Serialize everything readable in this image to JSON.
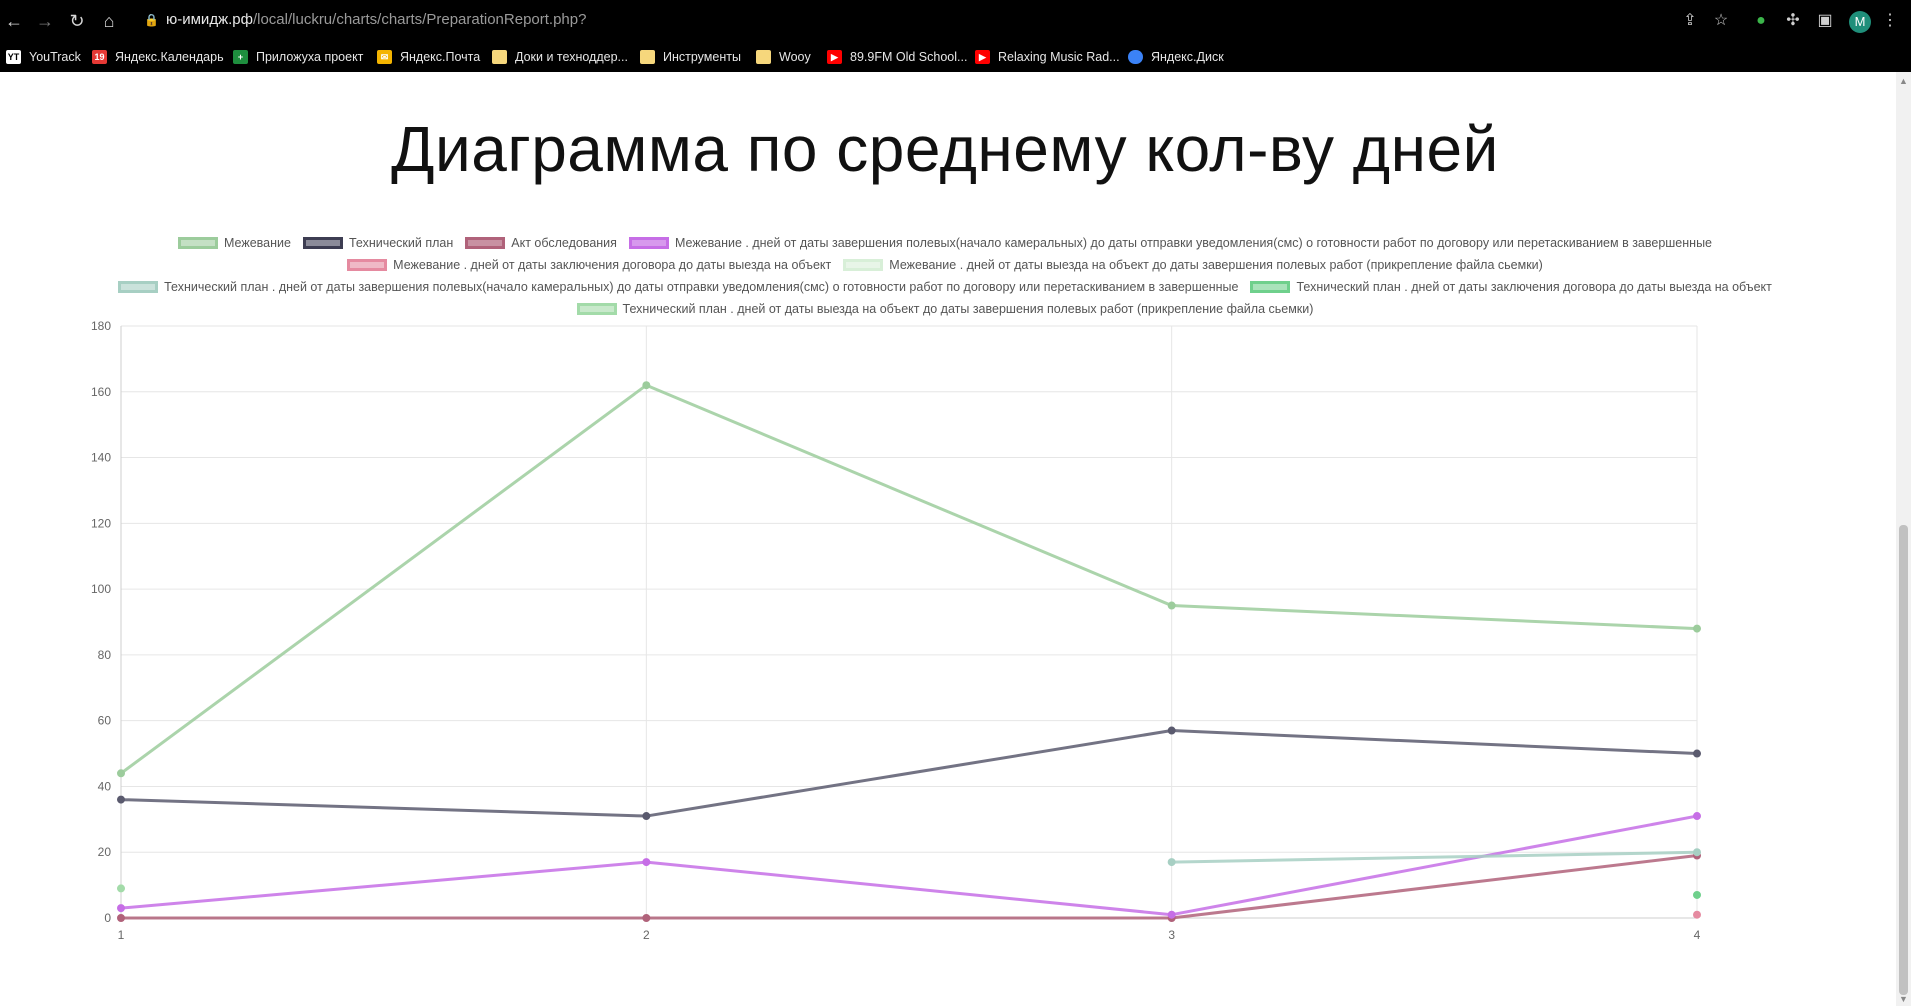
{
  "browser": {
    "url_domain": "ю-имидж.рф",
    "url_path": "/local/luckru/charts/charts/PreparationReport.php?",
    "profile_initial": "M"
  },
  "bookmarks": [
    {
      "label": "YouTrack",
      "icon": "youtrack-icon",
      "color": "#ffffff"
    },
    {
      "label": "Яндекс.Календарь",
      "icon": "calendar-icon",
      "color": "#e53935"
    },
    {
      "label": "Приложуха проект",
      "icon": "sheets-icon",
      "color": "#1e8e3e"
    },
    {
      "label": "Яндекс.Почта",
      "icon": "mail-icon",
      "color": "#f4b400"
    },
    {
      "label": "Доки и техноддер...",
      "icon": "folder-icon",
      "color": "#f6d77c"
    },
    {
      "label": "Инструменты",
      "icon": "folder-icon",
      "color": "#f6d77c"
    },
    {
      "label": "Wooy",
      "icon": "folder-icon",
      "color": "#f6d77c"
    },
    {
      "label": "89.9FM Old School...",
      "icon": "youtube-icon",
      "color": "#ff0000"
    },
    {
      "label": "Relaxing Music Rad...",
      "icon": "youtube-icon",
      "color": "#ff0000"
    },
    {
      "label": "Яндекс.Диск",
      "icon": "disk-icon",
      "color": "#3b82f6"
    }
  ],
  "page": {
    "title": "Диаграмма по среднему кол-ву дней"
  },
  "chart_data": {
    "type": "line",
    "x": [
      "1",
      "2",
      "3",
      "4"
    ],
    "yticks": [
      "0",
      "20",
      "40",
      "60",
      "80",
      "100",
      "120",
      "140",
      "160",
      "180"
    ],
    "ylim": [
      0,
      180
    ],
    "grid": true,
    "legend_position": "top",
    "series": [
      {
        "name": "Межевание",
        "color": "#9ccc9c",
        "values": [
          44,
          162,
          95,
          88
        ]
      },
      {
        "name": "Технический план",
        "color": "#5a5a6e",
        "values": [
          36,
          31,
          57,
          50
        ]
      },
      {
        "name": "Акт обследования",
        "color": "#b0627a",
        "values": [
          0,
          0,
          0,
          19
        ]
      },
      {
        "name": "Межевание . дней от даты завершения полевых(начало камеральных) до даты отправки уведомления(смс) о готовности работ по договору или перетаскиванием в завершенные",
        "color": "#c66ee6",
        "values": [
          3,
          17,
          1,
          31
        ]
      },
      {
        "name": "Межевание . дней от даты заключения договора до даты выезда на объект",
        "color": "#e58aa0",
        "values": [
          null,
          null,
          null,
          1
        ]
      },
      {
        "name": "Межевание . дней от даты выезда на объект до даты завершения полевых работ (прикрепление файла сьемки)",
        "color": "#d8efd8",
        "values": [
          null,
          null,
          null,
          null
        ]
      },
      {
        "name": "Технический план . дней от даты завершения полевых(начало камеральных) до даты отправки уведомления(смс) о готовности работ по договору или перетаскиванием в завершенные",
        "color": "#a7cfc3",
        "values": [
          null,
          null,
          17,
          20
        ]
      },
      {
        "name": "Технический план . дней от даты заключения договора до даты выезда на объект",
        "color": "#6fd08c",
        "values": [
          null,
          null,
          null,
          7
        ]
      },
      {
        "name": "Технический план . дней от даты выезда на объект до даты завершения полевых работ (прикрепление файла сьемки)",
        "color": "#a3dba9",
        "values": [
          9,
          null,
          null,
          null
        ]
      }
    ]
  }
}
